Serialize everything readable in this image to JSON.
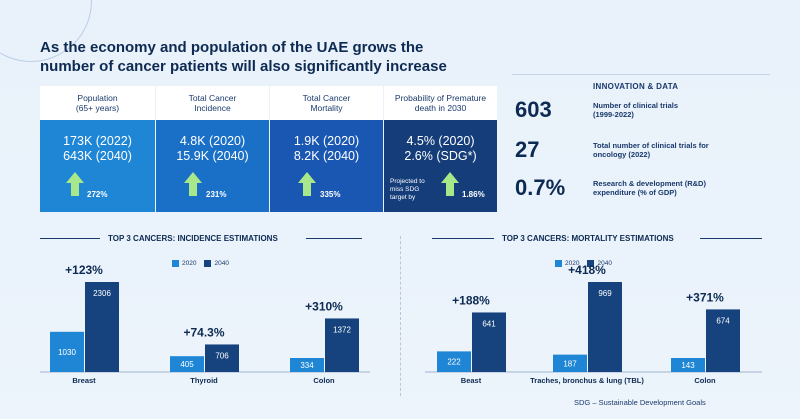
{
  "title_line1": "As the economy and population of the UAE grows the",
  "title_line2": "number of cancer patients will also significantly increase",
  "stats": [
    {
      "header": "Population\n(65+ years)",
      "line1": "173K (2022)",
      "line2": "643K (2040)",
      "increase": "272%",
      "color": "#1f86d6"
    },
    {
      "header": "Total Cancer\nIncidence",
      "line1": "4.8K (2020)",
      "line2": "15.9K (2040)",
      "increase": "231%",
      "color": "#1a6fc6"
    },
    {
      "header": "Total Cancer\nMortality",
      "line1": "1.9K (2020)",
      "line2": "8.2K (2040)",
      "increase": "335%",
      "color": "#1a57b3"
    },
    {
      "header": "Probability of Premature\ndeath in 2030",
      "line1": "4.5% (2020)",
      "line2": "2.6% (SDG*)",
      "increase": "1.86%",
      "note": "Projected to\nmiss SDG\ntarget by",
      "color": "#143d7a"
    }
  ],
  "innovation": {
    "heading": "INNOVATION & DATA",
    "items": [
      {
        "value": "603",
        "label": "Number of clinical trials\n(1999-2022)"
      },
      {
        "value": "27",
        "label": "Total number of clinical trials for\noncology (2022)"
      },
      {
        "value": "0.7%",
        "label": "Research & development (R&D)\nexpenditure (% of GDP)"
      }
    ]
  },
  "incidence_title": "TOP 3 CANCERS: INCIDENCE ESTIMATIONS",
  "mortality_title": "TOP 3 CANCERS: MORTALITY ESTIMATIONS",
  "footnote": "SDG – Sustainable Development Goals",
  "colors": {
    "y2020": "#1f86d6",
    "y2040": "#16437e",
    "navy": "#0d2a52"
  },
  "chart_data": [
    {
      "type": "bar",
      "title": "TOP 3 CANCERS: INCIDENCE ESTIMATIONS",
      "categories": [
        "Breast",
        "Thyroid",
        "Colon"
      ],
      "series": [
        {
          "name": "2020",
          "values": [
            1030,
            405,
            334
          ]
        },
        {
          "name": "2040",
          "values": [
            2306,
            706,
            1372
          ]
        }
      ],
      "annotations": [
        "+123%",
        "+74.3%",
        "+310%"
      ],
      "legend": "top"
    },
    {
      "type": "bar",
      "title": "TOP 3 CANCERS: MORTALITY ESTIMATIONS",
      "categories": [
        "Beast",
        "Traches, bronchus & lung (TBL)",
        "Colon"
      ],
      "series": [
        {
          "name": "2020",
          "values": [
            222,
            187,
            143
          ]
        },
        {
          "name": "2040",
          "values": [
            641,
            969,
            674
          ]
        }
      ],
      "annotations": [
        "+188%",
        "+418%",
        "+371%"
      ],
      "legend": "top"
    }
  ]
}
